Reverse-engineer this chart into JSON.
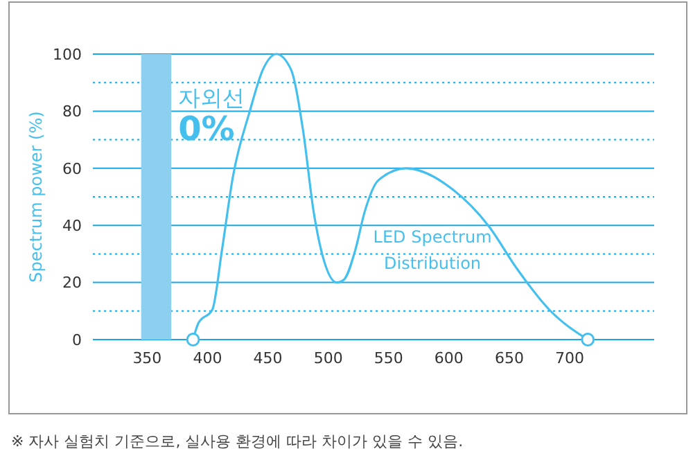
{
  "chart_data": {
    "type": "line",
    "ylabel": "Spectrum power (%)",
    "xlim": [
      305,
      770
    ],
    "ylim": [
      0,
      100
    ],
    "xticks": [
      350,
      400,
      450,
      500,
      550,
      600,
      650,
      700
    ],
    "yticks": [
      0,
      {
        "value": 10,
        "label": null
      },
      20,
      {
        "value": 30,
        "label": null
      },
      40,
      {
        "value": 50,
        "label": null
      },
      60,
      {
        "value": 70,
        "label": null
      },
      80,
      {
        "value": 90,
        "label": null
      },
      100
    ],
    "grid": "y",
    "series": [
      {
        "name": "LED Spectrum Distribution",
        "color": "#45c0ee",
        "marker": "none",
        "x": [
          388,
          392.5,
          404,
          412,
          421,
          435,
          446,
          457,
          469,
          479,
          488,
          496,
          507,
          513,
          522.5,
          530,
          541.5,
          564.5,
          603,
          633,
          656,
          683,
          715
        ],
        "values": [
          0,
          5.8,
          10.5,
          31.5,
          57,
          80,
          94.7,
          100,
          94.7,
          73.6,
          44.5,
          28.3,
          20,
          21,
          31.5,
          44.5,
          55.8,
          60,
          52.6,
          39.7,
          25,
          10.5,
          0
        ]
      },
      {
        "type": "scatter",
        "color": "#45c0ee",
        "marker": "circle",
        "x": [
          388,
          715
        ],
        "values": [
          0,
          0
        ]
      }
    ],
    "bands": [
      {
        "axis": "x",
        "from": 345,
        "to": 370,
        "label": "자외선",
        "color": "#8ccfee"
      }
    ],
    "annotations": [
      "0%",
      "※ 자사 실험치 기준으로, 실사용 환경에 따라 차이가 있을 수 있음."
    ]
  }
}
